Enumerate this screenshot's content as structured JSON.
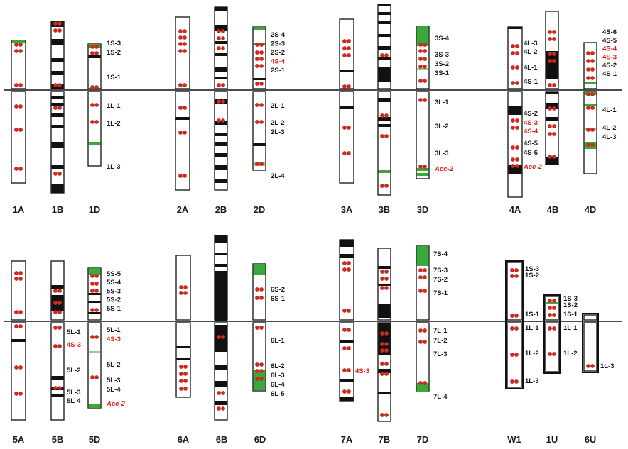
{
  "colors": {
    "outline": "#111111",
    "signal": "#cc2a1e",
    "green_band": "#3aa83a",
    "red_text": "#d62418"
  },
  "groups": [
    {
      "id": "g1",
      "chromosomes": [
        "1A",
        "1B",
        "1D"
      ],
      "loci": [
        "1S-3",
        "1S-2",
        "1S-1",
        "1L-1",
        "1L-2",
        "1L-3"
      ]
    },
    {
      "id": "g2",
      "chromosomes": [
        "2A",
        "2B",
        "2D"
      ],
      "loci": [
        "2S-4",
        "2S-3",
        "2S-2",
        "4S-4",
        "2S-1",
        "2L-1",
        "2L-2",
        "2L-3",
        "2L-4"
      ]
    },
    {
      "id": "g3",
      "chromosomes": [
        "3A",
        "3B",
        "3D"
      ],
      "loci": [
        "3S-4",
        "3S-3",
        "3S-2",
        "3S-1",
        "3L-1",
        "3L-2",
        "3L-3",
        "Acc-2"
      ]
    },
    {
      "id": "g4",
      "chromosomes": [
        "4A",
        "4B",
        "4D"
      ],
      "loci_4A": [
        "4L-3",
        "4L-2",
        "4L-1",
        "4S-1",
        "4S-2",
        "4S-3",
        "4S-4",
        "4S-5",
        "4S-6",
        "Acc-2"
      ],
      "loci_4D": [
        "4S-6",
        "4S-5",
        "4S-4",
        "4S-3",
        "4S-2",
        "4S-1",
        "4L-1",
        "4L-2",
        "4L-3"
      ]
    },
    {
      "id": "g5",
      "chromosomes": [
        "5A",
        "5B",
        "5D"
      ],
      "loci_5B": [
        "5L-1",
        "4S-3",
        "5L-2",
        "5L-3",
        "5L-4"
      ],
      "loci_5D": [
        "5S-5",
        "5S-4",
        "5S-3",
        "5S-2",
        "5S-1",
        "5L-1",
        "4S-3",
        "5L-2",
        "5L-3",
        "5L-4",
        "Acc-2"
      ]
    },
    {
      "id": "g6",
      "chromosomes": [
        "6A",
        "6B",
        "6D"
      ],
      "loci": [
        "6S-2",
        "6S-1",
        "6L-1",
        "6L-2",
        "6L-3",
        "6L-4",
        "6L-5"
      ]
    },
    {
      "id": "g7",
      "chromosomes": [
        "7A",
        "7B",
        "7D"
      ],
      "loci_7A": [
        "4S-3"
      ],
      "loci_7D": [
        "7S-4",
        "7S-3",
        "7S-2",
        "7S-1",
        "7L-1",
        "7L-2",
        "7L-3",
        "7L-4"
      ]
    },
    {
      "id": "g8",
      "chromosomes": [
        "W1",
        "1U",
        "6U"
      ],
      "loci_W1": [
        "1S-3",
        "1S-2",
        "1S-1",
        "1L-1",
        "1L-2",
        "1L-3"
      ],
      "loci_1U": [
        "1S-3",
        "1S-2",
        "1S-1",
        "1L-1",
        "1L-2"
      ],
      "loci_6U": [
        "1L-3"
      ]
    }
  ]
}
